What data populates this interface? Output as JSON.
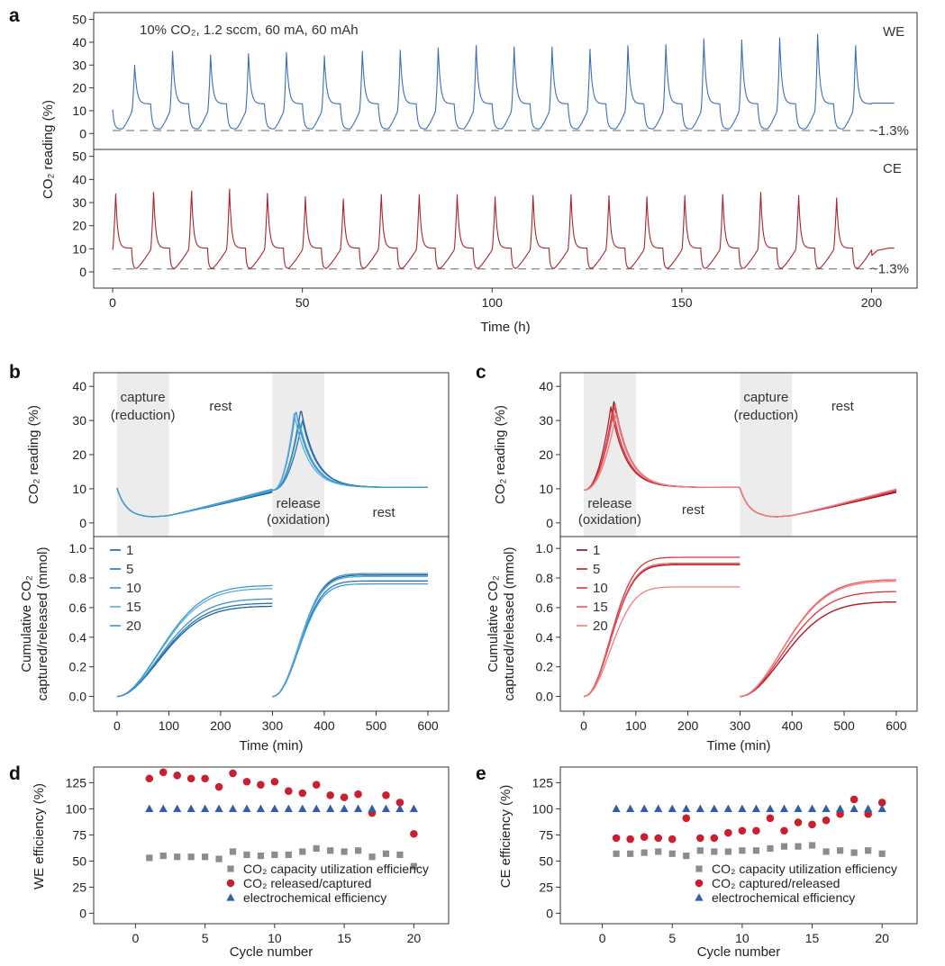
{
  "figure": {
    "panel_letters": [
      "a",
      "b",
      "c",
      "d",
      "e"
    ]
  },
  "chart_data": [
    {
      "id": "a_we",
      "type": "line",
      "panel": "a",
      "label": "WE",
      "annotation": "10% CO₂, 1.2 sccm, 60 mA, 60 mAh",
      "baseline_label": "~1.3%",
      "baseline": 1.3,
      "color": "#3a6fb5",
      "ylabel": "CO₂ reading (%)",
      "xlabel": "Time (h)",
      "xlim": [
        -5,
        212
      ],
      "ylim": [
        -7,
        53
      ],
      "xticks": [
        0,
        50,
        100,
        150,
        200
      ],
      "yticks": [
        0,
        10,
        20,
        30,
        40,
        50
      ],
      "cycle_hours": 10,
      "cycles": 20,
      "start_value": 10.5,
      "end_value": 13.3,
      "rest_level": 13,
      "min_value": 2,
      "peaks": [
        30,
        36,
        34.5,
        35,
        35.5,
        34,
        36,
        36.5,
        37.5,
        38.5,
        38,
        38,
        37,
        38.5,
        39,
        41.5,
        41,
        42,
        43.5,
        38.5
      ]
    },
    {
      "id": "a_ce",
      "type": "line",
      "panel": "a",
      "label": "CE",
      "baseline_label": "~1.3%",
      "baseline": 1.3,
      "color": "#a9242b",
      "xlim": [
        -5,
        212
      ],
      "ylim": [
        -7,
        53
      ],
      "yticks": [
        0,
        10,
        20,
        30,
        40,
        50
      ],
      "cycle_hours": 10,
      "cycles": 20,
      "rest_level": 10.3,
      "min_value": 1.5,
      "peaks": [
        33.8,
        34.5,
        35,
        35.8,
        34,
        32.5,
        31.5,
        33.5,
        33.5,
        33.5,
        32.5,
        33,
        33.5,
        33,
        32.5,
        33,
        33.5,
        34.5,
        33,
        32
      ]
    },
    {
      "id": "b_top",
      "type": "line",
      "panel": "b",
      "ylabel": "CO₂ reading (%)",
      "xlim": [
        -45,
        640
      ],
      "ylim": [
        -4,
        44
      ],
      "yticks": [
        0,
        10,
        20,
        30,
        40
      ],
      "shaded": [
        [
          0,
          100
        ],
        [
          300,
          400
        ]
      ],
      "labels": [
        "capture",
        "(reduction)",
        "rest",
        "release",
        "(oxidation)",
        "rest"
      ],
      "series": [
        {
          "name": "1",
          "peak": 33.5,
          "peak_time": 355,
          "color": "#1f5f96"
        },
        {
          "name": "5",
          "peak": 30,
          "peak_time": 358,
          "color": "#2776b5"
        },
        {
          "name": "10",
          "peak": 33.2,
          "peak_time": 345,
          "color": "#3d93cf"
        },
        {
          "name": "15",
          "peak": 32,
          "peak_time": 342,
          "color": "#5aaee0"
        },
        {
          "name": "20",
          "peak": 29.5,
          "peak_time": 352,
          "color": "#3c9ccc"
        }
      ]
    },
    {
      "id": "b_bottom",
      "type": "line",
      "panel": "b",
      "ylabel": "Cumulative CO₂ captured/released (mmol)",
      "xlabel": "Time (min)",
      "xlim": [
        -45,
        640
      ],
      "ylim": [
        -0.1,
        1.08
      ],
      "xticks": [
        0,
        100,
        200,
        300,
        400,
        500,
        600
      ],
      "yticks": [
        0.0,
        0.2,
        0.4,
        0.6,
        0.8,
        1.0
      ],
      "tick_labels": [
        "0.0",
        "0.2",
        "0.4",
        "0.6",
        "0.8",
        "1.0"
      ],
      "legend": [
        "1",
        "5",
        "10",
        "15",
        "20"
      ],
      "series": [
        {
          "name": "1",
          "capture_end": 0.61,
          "release_end": 0.82,
          "color": "#1f5f96"
        },
        {
          "name": "5",
          "capture_end": 0.63,
          "release_end": 0.78,
          "color": "#2776b5"
        },
        {
          "name": "10",
          "capture_end": 0.66,
          "release_end": 0.83,
          "color": "#3d93cf"
        },
        {
          "name": "15",
          "capture_end": 0.73,
          "release_end": 0.81,
          "color": "#5aaee0"
        },
        {
          "name": "20",
          "capture_end": 0.75,
          "release_end": 0.76,
          "color": "#3c9ccc"
        }
      ]
    },
    {
      "id": "c_top",
      "type": "line",
      "panel": "c",
      "ylabel": "CO₂ reading (%)",
      "xlim": [
        -45,
        640
      ],
      "ylim": [
        -4,
        44
      ],
      "yticks": [
        0,
        10,
        20,
        30,
        40
      ],
      "shaded": [
        [
          0,
          100
        ],
        [
          300,
          400
        ]
      ],
      "labels": [
        "capture",
        "(reduction)",
        "rest",
        "release",
        "(oxidation)",
        "rest"
      ],
      "series": [
        {
          "name": "1",
          "peak": 35.5,
          "peak_time": 58,
          "color": "#7a1420"
        },
        {
          "name": "5",
          "peak": 34,
          "peak_time": 52,
          "color": "#b5202e"
        },
        {
          "name": "10",
          "peak": 33,
          "peak_time": 56,
          "color": "#d9363f"
        },
        {
          "name": "15",
          "peak": 35,
          "peak_time": 60,
          "color": "#ea5a60"
        },
        {
          "name": "20",
          "peak": 32,
          "peak_time": 62,
          "color": "#f07d80"
        }
      ]
    },
    {
      "id": "c_bottom",
      "type": "line",
      "panel": "c",
      "ylabel": "Cumulative CO₂ captured/released (mmol)",
      "xlabel": "Time (min)",
      "xlim": [
        -45,
        640
      ],
      "ylim": [
        -0.1,
        1.08
      ],
      "xticks": [
        0,
        100,
        200,
        300,
        400,
        500,
        600
      ],
      "yticks": [
        0.0,
        0.2,
        0.4,
        0.6,
        0.8,
        1.0
      ],
      "tick_labels": [
        "0.0",
        "0.2",
        "0.4",
        "0.6",
        "0.8",
        "1.0"
      ],
      "legend": [
        "1",
        "5",
        "10",
        "15",
        "20"
      ],
      "series": [
        {
          "name": "1",
          "release_end": 0.89,
          "capture_end": 0.64,
          "color": "#7a1420"
        },
        {
          "name": "5",
          "release_end": 0.89,
          "capture_end": 0.64,
          "color": "#b5202e"
        },
        {
          "name": "10",
          "release_end": 0.94,
          "capture_end": 0.71,
          "color": "#d9363f"
        },
        {
          "name": "15",
          "release_end": 0.9,
          "capture_end": 0.79,
          "color": "#ea5a60"
        },
        {
          "name": "20",
          "release_end": 0.74,
          "capture_end": 0.78,
          "color": "#f07d80"
        }
      ]
    },
    {
      "id": "d",
      "type": "scatter",
      "panel": "d",
      "ylabel": "WE efficiency (%)",
      "xlabel": "Cycle number",
      "xlim": [
        -3,
        22.5
      ],
      "ylim": [
        -10,
        140
      ],
      "xticks": [
        0,
        5,
        10,
        15,
        20
      ],
      "yticks": [
        0,
        25,
        50,
        75,
        100,
        125
      ],
      "legend": [
        "CO₂ capacity utilization efficiency",
        "CO₂ released/captured",
        "electrochemical efficiency"
      ],
      "x": [
        1,
        2,
        3,
        4,
        5,
        6,
        7,
        8,
        9,
        10,
        11,
        12,
        13,
        14,
        15,
        16,
        17,
        18,
        19,
        20
      ],
      "series": [
        {
          "name": "CO₂ capacity utilization efficiency",
          "marker": "square",
          "color": "#8c8c8c",
          "values": [
            53,
            55,
            54,
            54,
            54,
            52,
            59,
            56,
            55,
            56,
            56,
            59,
            62,
            60,
            59,
            60,
            54,
            57,
            56,
            45
          ]
        },
        {
          "name": "CO₂ released/captured",
          "marker": "circle",
          "color": "#c8202f",
          "values": [
            129,
            135,
            132,
            129,
            129,
            121,
            134,
            126,
            123,
            126,
            117,
            115,
            123,
            113,
            111,
            114,
            96,
            113,
            106,
            76
          ]
        },
        {
          "name": "electrochemical efficiency",
          "marker": "triangle",
          "color": "#2e5fa8",
          "values": [
            100,
            100,
            100,
            100,
            100,
            100,
            100,
            100,
            100,
            100,
            100,
            100,
            100,
            100,
            100,
            100,
            100,
            100,
            100,
            100
          ]
        }
      ]
    },
    {
      "id": "e",
      "type": "scatter",
      "panel": "e",
      "ylabel": "CE efficiency (%)",
      "xlabel": "Cycle number",
      "xlim": [
        -3,
        22.5
      ],
      "ylim": [
        -10,
        140
      ],
      "xticks": [
        0,
        5,
        10,
        15,
        20
      ],
      "yticks": [
        0,
        25,
        50,
        75,
        100,
        125
      ],
      "legend": [
        "CO₂ capacity utilization efficiency",
        "CO₂ captured/released",
        "electrochemical efficiency"
      ],
      "x": [
        1,
        2,
        3,
        4,
        5,
        6,
        7,
        8,
        9,
        10,
        11,
        12,
        13,
        14,
        15,
        16,
        17,
        18,
        19,
        20
      ],
      "series": [
        {
          "name": "CO₂ capacity utilization efficiency",
          "marker": "square",
          "color": "#8c8c8c",
          "values": [
            57,
            57,
            58,
            59,
            57,
            55,
            60,
            59,
            59,
            60,
            60,
            62,
            64,
            64,
            65,
            59,
            60,
            58,
            60,
            57
          ]
        },
        {
          "name": "CO₂ captured/released",
          "marker": "circle",
          "color": "#c8202f",
          "values": [
            72,
            71,
            73,
            72,
            71,
            91,
            72,
            72,
            77,
            79,
            79,
            91,
            79,
            87,
            85,
            89,
            95,
            109,
            95,
            106
          ]
        },
        {
          "name": "electrochemical efficiency",
          "marker": "triangle",
          "color": "#2e5fa8",
          "values": [
            100,
            100,
            100,
            100,
            100,
            100,
            100,
            100,
            100,
            100,
            100,
            100,
            100,
            100,
            100,
            100,
            100,
            100,
            100,
            100
          ]
        }
      ]
    }
  ]
}
